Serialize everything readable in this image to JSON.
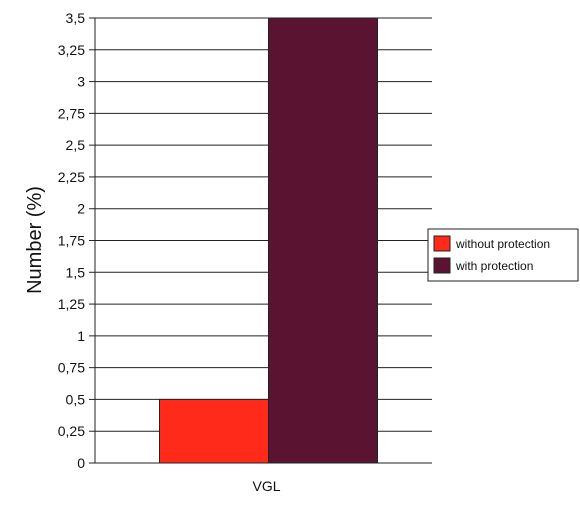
{
  "chart_data": {
    "type": "bar",
    "title": "",
    "xlabel": "",
    "ylabel": "Number (%)",
    "categories": [
      "VGL"
    ],
    "series": [
      {
        "name": "without protection",
        "values": [
          0.5
        ],
        "color": "#ff2a1a"
      },
      {
        "name": "with protection",
        "values": [
          3.5
        ],
        "color": "#5a1432"
      }
    ],
    "ylim": [
      0,
      3.5
    ],
    "yticks": [
      "0",
      "0,25",
      "0,5",
      "0,75",
      "1",
      "1,25",
      "1,5",
      "1,75",
      "2",
      "2,25",
      "2,5",
      "2,75",
      "3",
      "3,25",
      "3,5"
    ],
    "ytick_values": [
      0,
      0.25,
      0.5,
      0.75,
      1,
      1.25,
      1.5,
      1.75,
      2,
      2.25,
      2.5,
      2.75,
      3,
      3.25,
      3.5
    ],
    "grid": true,
    "legend": "right"
  }
}
